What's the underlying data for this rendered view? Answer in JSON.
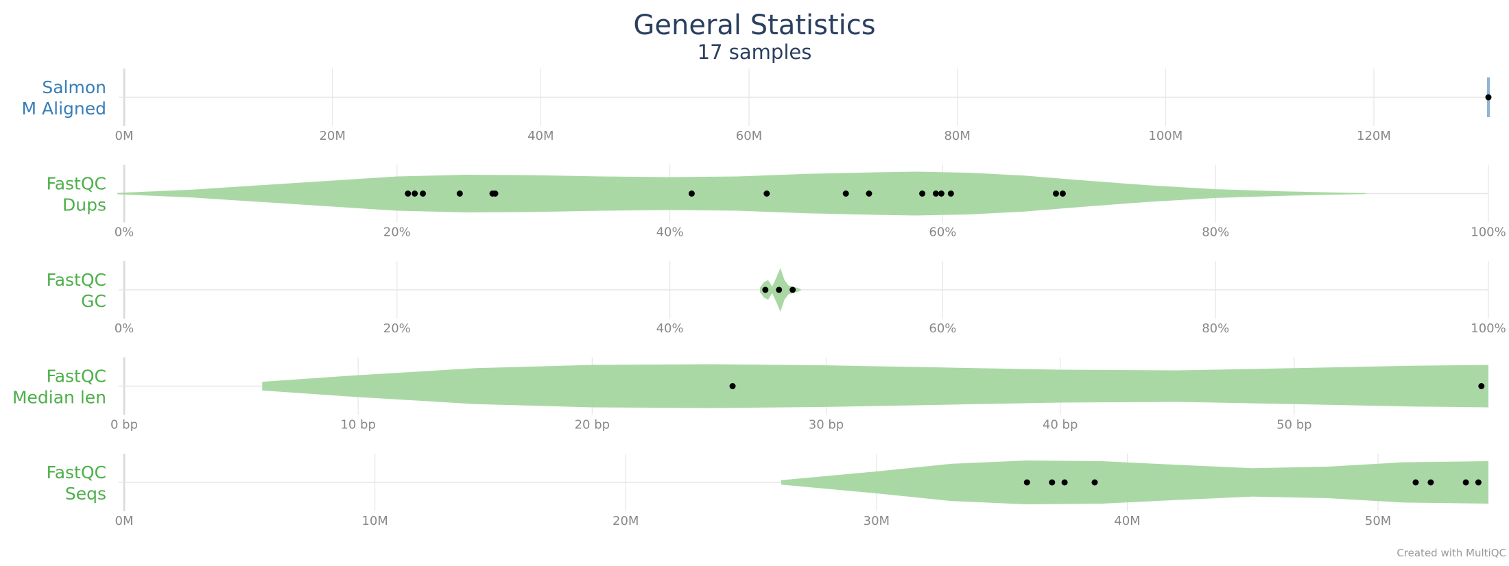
{
  "chart_data": {
    "type": "violin",
    "title": "General Statistics",
    "subtitle": "17 samples",
    "credit": "Created with MultiQC",
    "colors": {
      "salmon": "#377eb8",
      "fastqc": "#4daf4a",
      "violin_fill": "#a5d6a0",
      "point": "#000000",
      "grid": "#e6e6e6",
      "tick_text": "#888888",
      "title_text": "#2a3f5f"
    },
    "rows": [
      {
        "id": "salmon-m-aligned",
        "label": [
          "Salmon",
          "M Aligned"
        ],
        "color": "#377eb8",
        "axis_range": [
          0,
          131
        ],
        "tick_values": [
          0,
          20,
          40,
          60,
          80,
          100,
          120
        ],
        "tick_labels": [
          "0M",
          "20M",
          "40M",
          "60M",
          "80M",
          "100M",
          "120M"
        ],
        "violin": null,
        "single_value_marker": true,
        "points": [
          131
        ]
      },
      {
        "id": "fastqc-dups",
        "label": [
          "FastQC",
          "Dups"
        ],
        "color": "#4daf4a",
        "axis_range": [
          0,
          100
        ],
        "tick_values": [
          0,
          20,
          40,
          60,
          80,
          100
        ],
        "tick_labels": [
          "0%",
          "20%",
          "40%",
          "60%",
          "80%",
          "100%"
        ],
        "violin": {
          "x": [
            -0.5,
            5,
            10,
            15,
            20,
            25,
            30,
            35,
            40,
            45,
            50,
            55,
            58,
            62,
            66,
            70,
            75,
            80,
            85,
            91
          ],
          "density": [
            0.03,
            0.18,
            0.38,
            0.58,
            0.78,
            0.86,
            0.84,
            0.78,
            0.75,
            0.78,
            0.9,
            0.97,
            1.0,
            0.95,
            0.82,
            0.62,
            0.38,
            0.2,
            0.1,
            0.02
          ]
        },
        "single_value_marker": false,
        "points": [
          20.8,
          21.3,
          21.9,
          24.6,
          27.0,
          27.2,
          41.6,
          47.1,
          52.9,
          54.6,
          58.5,
          59.5,
          59.9,
          60.6,
          68.3,
          68.8
        ]
      },
      {
        "id": "fastqc-gc",
        "label": [
          "FastQC",
          "GC"
        ],
        "color": "#4daf4a",
        "axis_range": [
          0,
          100
        ],
        "tick_values": [
          0,
          20,
          40,
          60,
          80,
          100
        ],
        "tick_labels": [
          "0%",
          "20%",
          "40%",
          "60%",
          "80%",
          "100%"
        ],
        "violin": {
          "x": [
            46.6,
            46.9,
            47.2,
            47.5,
            47.8,
            48.1,
            48.4,
            48.7,
            49.0,
            49.3,
            49.6
          ],
          "density": [
            0.1,
            0.35,
            0.45,
            0.15,
            0.55,
            1.0,
            0.45,
            0.2,
            0.15,
            0.1,
            0.03
          ]
        },
        "single_value_marker": false,
        "points": [
          47.0,
          48.0,
          49.0
        ]
      },
      {
        "id": "fastqc-median-len",
        "label": [
          "FastQC",
          "Median len"
        ],
        "color": "#4daf4a",
        "axis_range": [
          0,
          58.3
        ],
        "tick_values": [
          0,
          10,
          20,
          30,
          40,
          50
        ],
        "tick_labels": [
          "0 bp",
          "10 bp",
          "20 bp",
          "30 bp",
          "40 bp",
          "50 bp"
        ],
        "violin": {
          "x": [
            5.9,
            10,
            15,
            20,
            25,
            30,
            35,
            40,
            45,
            50,
            55,
            58.3
          ],
          "density": [
            0.2,
            0.5,
            0.82,
            0.97,
            1.0,
            0.95,
            0.85,
            0.75,
            0.72,
            0.82,
            0.93,
            0.97
          ]
        },
        "single_value_marker": false,
        "points": [
          26.0,
          58.0
        ]
      },
      {
        "id": "fastqc-seqs",
        "label": [
          "FastQC",
          "Seqs"
        ],
        "color": "#4daf4a",
        "axis_range": [
          0,
          54.4
        ],
        "tick_values": [
          0,
          10,
          20,
          30,
          40,
          50
        ],
        "tick_labels": [
          "0M",
          "10M",
          "20M",
          "30M",
          "40M",
          "50M"
        ],
        "violin": {
          "x": [
            26.2,
            30,
            33,
            36,
            39,
            42,
            45,
            48,
            51,
            54.4
          ],
          "density": [
            0.1,
            0.5,
            0.85,
            1.0,
            0.97,
            0.8,
            0.65,
            0.72,
            0.92,
            0.97
          ]
        },
        "single_value_marker": false,
        "points": [
          36.0,
          37.0,
          37.5,
          38.7,
          51.5,
          52.1,
          53.5,
          54.0
        ]
      }
    ]
  }
}
